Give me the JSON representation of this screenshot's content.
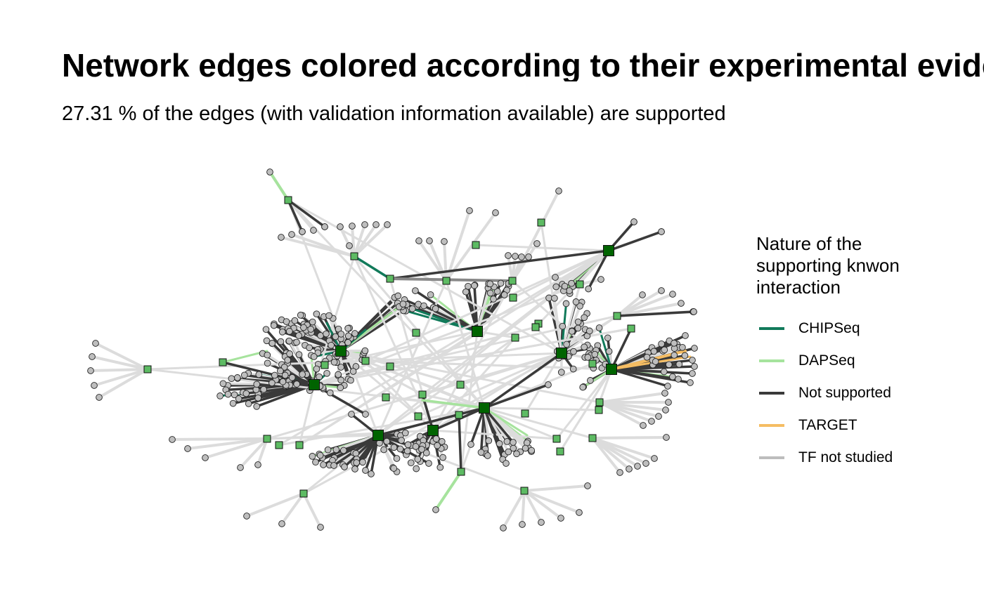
{
  "title": "Network edges colored according to their experimental evidence",
  "subtitle": "27.31 % of the edges (with validation information available) are supported",
  "legend": {
    "title_lines": [
      "Nature of the",
      "supporting knwon",
      "interaction"
    ],
    "items": [
      {
        "label": "CHIPSeq",
        "color": "#117a5a"
      },
      {
        "label": "DAPSeq",
        "color": "#a6e39d"
      },
      {
        "label": "Not supported",
        "color": "#3a3a3a"
      },
      {
        "label": "TARGET",
        "color": "#f5bd63"
      },
      {
        "label": "TF not studied",
        "color": "#bdbdbd"
      }
    ]
  },
  "node_colors": {
    "hub": "#006400",
    "regulator": "#5dbb63",
    "target": "#bebebe"
  }
}
